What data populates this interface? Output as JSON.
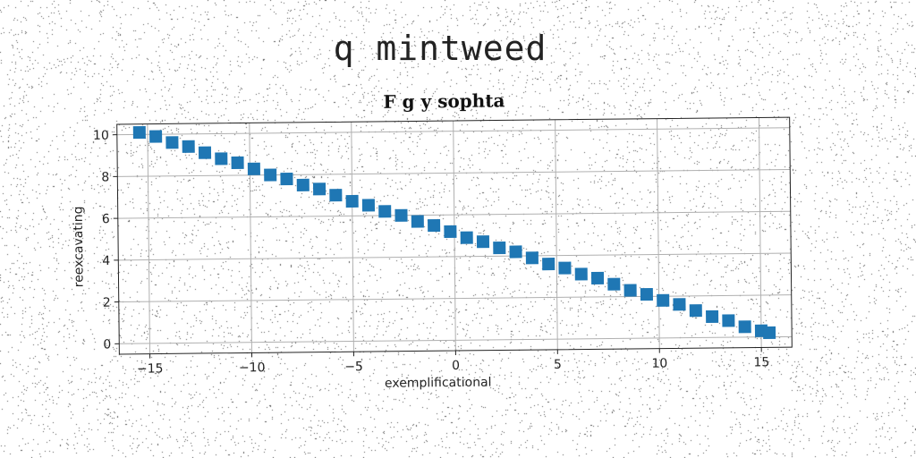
{
  "suptitle": "q mintweed",
  "chart_data": {
    "type": "scatter",
    "title": "F g y sophta",
    "xlabel": "exemplificational",
    "ylabel": "reexcavating",
    "xlim": [
      -16.5,
      16.5
    ],
    "ylim": [
      -0.5,
      10.5
    ],
    "xticks": [
      -15,
      -10,
      -5,
      0,
      5,
      10,
      15
    ],
    "xtick_labels": [
      "−15",
      "−10",
      "−5",
      "0",
      "5",
      "10",
      "15"
    ],
    "yticks": [
      0,
      2,
      4,
      6,
      8,
      10
    ],
    "ytick_labels": [
      "0",
      "2",
      "4",
      "6",
      "8",
      "10"
    ],
    "grid": true,
    "marker": "square",
    "series": [
      {
        "color": "#1f77b4",
        "x": [
          -15.4,
          -14.6,
          -13.8,
          -13.0,
          -12.2,
          -11.4,
          -10.6,
          -9.8,
          -9.0,
          -8.2,
          -7.4,
          -6.6,
          -5.8,
          -5.0,
          -4.2,
          -3.4,
          -2.6,
          -1.8,
          -1.0,
          -0.2,
          0.6,
          1.4,
          2.2,
          3.0,
          3.8,
          4.6,
          5.4,
          6.2,
          7.0,
          7.8,
          8.6,
          9.4,
          10.2,
          11.0,
          11.8,
          12.6,
          13.4,
          14.2,
          15.0,
          15.4
        ],
        "y": [
          10.1,
          9.9,
          9.6,
          9.4,
          9.1,
          8.8,
          8.6,
          8.3,
          8.0,
          7.8,
          7.5,
          7.3,
          7.0,
          6.7,
          6.5,
          6.2,
          6.0,
          5.7,
          5.5,
          5.2,
          4.9,
          4.7,
          4.4,
          4.2,
          3.9,
          3.6,
          3.4,
          3.1,
          2.9,
          2.6,
          2.3,
          2.1,
          1.8,
          1.6,
          1.3,
          1.0,
          0.8,
          0.5,
          0.3,
          0.2
        ]
      }
    ]
  }
}
